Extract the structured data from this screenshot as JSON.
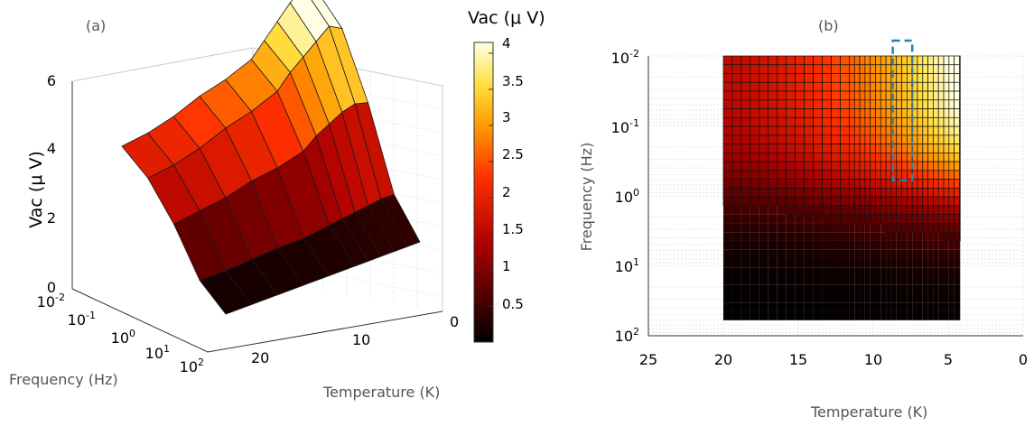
{
  "figure": {
    "panel_a_label": "(a)",
    "panel_b_label": "(b)",
    "colorbar_title": "Vac (μ V)",
    "colorbar_ticks": [
      "4",
      "3.5",
      "3",
      "2.5",
      "2",
      "1.5",
      "1",
      "0.5"
    ]
  },
  "chart_data": [
    {
      "type": "surface",
      "panel": "(a)",
      "zlabel": "Vac (μ V)",
      "xlabel": "Frequency (Hz)",
      "ylabel": "Temperature (K)",
      "zlim": [
        0,
        6
      ],
      "z_ticks": [
        "6",
        "4",
        "2",
        "0"
      ],
      "frequency_ticks": [
        {
          "base": "10",
          "exp": "-2"
        },
        {
          "base": "10",
          "exp": "-1"
        },
        {
          "base": "10",
          "exp": "0"
        },
        {
          "base": "10",
          "exp": "1"
        },
        {
          "base": "10",
          "exp": "2"
        }
      ],
      "temperature_ticks": [
        "20",
        "10",
        "0"
      ],
      "temperature_K": [
        20,
        18,
        16,
        14,
        12,
        10,
        9,
        8,
        7,
        6,
        5
      ],
      "frequency_Hz": [
        0.01,
        0.1,
        1,
        10,
        100
      ],
      "vac_uV": [
        [
          2.0,
          1.8,
          1.2,
          0.3,
          0.05
        ],
        [
          2.1,
          1.9,
          1.3,
          0.3,
          0.05
        ],
        [
          2.3,
          2.1,
          1.4,
          0.35,
          0.05
        ],
        [
          2.6,
          2.4,
          1.6,
          0.4,
          0.05
        ],
        [
          2.8,
          2.6,
          1.7,
          0.4,
          0.05
        ],
        [
          3.1,
          2.9,
          1.9,
          0.5,
          0.05
        ],
        [
          3.5,
          3.3,
          2.2,
          0.55,
          0.05
        ],
        [
          3.9,
          3.6,
          2.4,
          0.6,
          0.05
        ],
        [
          4.3,
          3.9,
          2.6,
          0.65,
          0.05
        ],
        [
          4.6,
          4.2,
          2.7,
          0.7,
          0.05
        ],
        [
          4.4,
          4.0,
          2.6,
          0.7,
          0.05
        ]
      ],
      "grid": true
    },
    {
      "type": "heatmap",
      "panel": "(b)",
      "xlabel": "Temperature (K)",
      "ylabel": "Frequency (Hz)",
      "xlim": [
        25,
        0
      ],
      "x_ticks": [
        "25",
        "20",
        "15",
        "10",
        "5",
        "0"
      ],
      "frequency_ticks": [
        {
          "base": "10",
          "exp": "-2"
        },
        {
          "base": "10",
          "exp": "-1"
        },
        {
          "base": "10",
          "exp": "0"
        },
        {
          "base": "10",
          "exp": "1"
        },
        {
          "base": "10",
          "exp": "2"
        }
      ],
      "y_log": true,
      "data_extent": {
        "temperature_K": [
          20,
          4.2
        ],
        "frequency_Hz": [
          0.01,
          60
        ]
      },
      "highlight_box": {
        "temperature_K": [
          7.4,
          8.7
        ],
        "frequency_Hz": [
          0.01,
          0.6
        ],
        "style": "dashed",
        "color": "#2e7fb3"
      },
      "grid": true
    }
  ]
}
